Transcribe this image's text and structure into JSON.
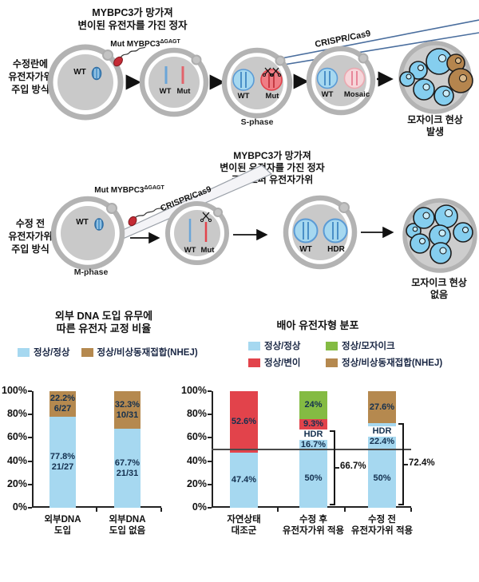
{
  "colors": {
    "blue": "#a6d8f0",
    "red": "#e2434b",
    "green": "#84bb43",
    "brown": "#b5894f",
    "cell_blue": "#85ceef",
    "cell_brown": "#b5854e",
    "egg_ring": "#b3b3b3",
    "egg_fill": "#c9c9c9",
    "label_dark": "#14304f"
  },
  "diagram": {
    "row1": {
      "side_label_lines": [
        "수정란에",
        "유전자가위",
        "주입 방식"
      ],
      "title_lines": [
        "MYBPC3가 망가져",
        "변이된 유전자를 가진 정자"
      ],
      "mut_label_base": "Mut MYBPC3",
      "mut_label_sup": "ΔGAGT",
      "crispr_label": "CRISPR/Cas9",
      "egg1_wt": "WT",
      "egg2_wt": "WT",
      "egg2_mut": "Mut",
      "egg3_wt": "WT",
      "egg3_mut": "Mut",
      "egg3_phase": "S-phase",
      "egg4_wt": "WT",
      "egg4_mosaic": "Mosaic",
      "result_lines": [
        "모자이크 현상",
        "발생"
      ]
    },
    "row2": {
      "side_label_lines": [
        "수정 전",
        "유전자가위",
        "주입 방식"
      ],
      "title_lines": [
        "MYBPC3가 망가져",
        "변이된 유전자를 가진 정자",
        "크리스퍼 유전자가위"
      ],
      "mut_label_base": "Mut MYBPC3",
      "mut_label_sup": "ΔGAGT",
      "crispr_label": "CRISPR/Cas9",
      "egg1_wt": "WT",
      "egg1_phase": "M-phase",
      "egg2_wt": "WT",
      "egg2_mut": "Mut",
      "egg3_wt": "WT",
      "egg3_hdr": "HDR",
      "result_lines": [
        "모자이크 현상",
        "없음"
      ]
    }
  },
  "chart_data": [
    {
      "type": "bar",
      "stacked": true,
      "title_lines": [
        "외부 DNA 도입 유무에",
        "따른 유전자 교정 비율"
      ],
      "legend": [
        {
          "label": "정상/정상",
          "color_key": "blue"
        },
        {
          "label": "정상/비상동재접합(NHEJ)",
          "color_key": "brown"
        }
      ],
      "ylim": [
        0,
        100
      ],
      "y_ticks": [
        "100%",
        "80%",
        "60%",
        "40%",
        "20%",
        "0%"
      ],
      "categories": [
        [
          "외부DNA",
          "도입"
        ],
        [
          "외부DNA",
          "도입 없음"
        ]
      ],
      "bars": [
        {
          "segments": [
            {
              "value": 77.8,
              "color_key": "blue",
              "label_lines": [
                "77.8%",
                "21/27"
              ]
            },
            {
              "value": 22.2,
              "color_key": "brown",
              "label_lines": [
                "22.2%",
                "6/27"
              ]
            }
          ]
        },
        {
          "segments": [
            {
              "value": 67.7,
              "color_key": "blue",
              "label_lines": [
                "67.7%",
                "21/31"
              ]
            },
            {
              "value": 32.3,
              "color_key": "brown",
              "label_lines": [
                "32.3%",
                "10/31"
              ]
            }
          ]
        }
      ]
    },
    {
      "type": "bar",
      "stacked": true,
      "title_lines": [
        "배아 유전자형 분포"
      ],
      "legend": [
        {
          "label": "정상/정상",
          "color_key": "blue"
        },
        {
          "label": "정상/모자이크",
          "color_key": "green"
        },
        {
          "label": "정상/변이",
          "color_key": "red"
        },
        {
          "label": "정상/비상동재접합(NHEJ)",
          "color_key": "brown"
        }
      ],
      "ylim": [
        0,
        100
      ],
      "y_ticks": [
        "100%",
        "80%",
        "60%",
        "40%",
        "20%",
        "0%"
      ],
      "reference_line": 50,
      "categories": [
        [
          "자연상태",
          "대조군"
        ],
        [
          "수정 후",
          "유전자가위 적용"
        ],
        [
          "수정 전",
          "유전자가위 적용"
        ]
      ],
      "bars": [
        {
          "segments": [
            {
              "value": 47.4,
              "color_key": "blue",
              "label_lines": [
                "47.4%"
              ]
            },
            {
              "value": 52.6,
              "color_key": "red",
              "label_lines": [
                "52.6%"
              ]
            }
          ]
        },
        {
          "segments": [
            {
              "value": 50,
              "color_key": "blue",
              "label_lines": [
                "50%"
              ]
            },
            {
              "value": 16.7,
              "color_key": "blue",
              "label_lines": [
                "HDR",
                "16.7%"
              ],
              "hdr_style": true
            },
            {
              "value": 9.3,
              "color_key": "red",
              "label_lines": [
                "9.3%"
              ]
            },
            {
              "value": 24,
              "color_key": "green",
              "label_lines": [
                "24%"
              ]
            }
          ],
          "bracket": {
            "span": 66.7,
            "label": "66.7%"
          }
        },
        {
          "segments": [
            {
              "value": 50,
              "color_key": "blue",
              "label_lines": [
                "50%"
              ]
            },
            {
              "value": 22.4,
              "color_key": "blue",
              "label_lines": [
                "HDR",
                "22.4%"
              ],
              "hdr_style": true
            },
            {
              "value": 27.6,
              "color_key": "brown",
              "label_lines": [
                "27.6%"
              ]
            }
          ],
          "bracket": {
            "span": 72.4,
            "label": "72.4%"
          }
        }
      ]
    }
  ]
}
